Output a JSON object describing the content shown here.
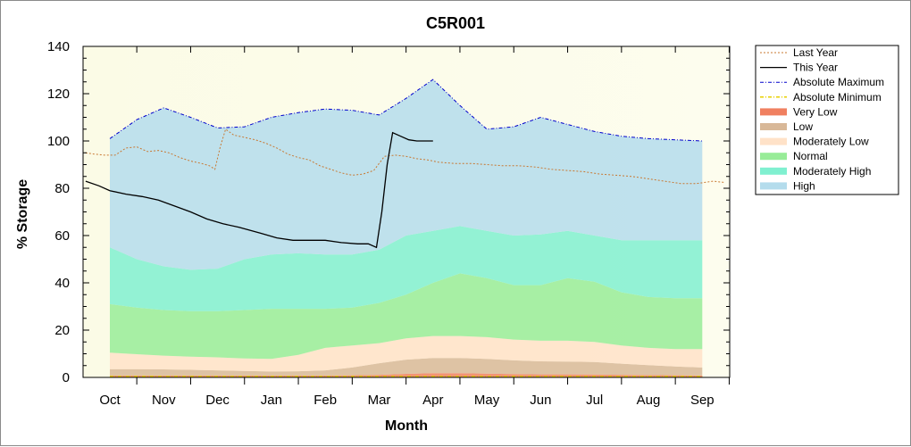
{
  "chart_data": {
    "type": "area",
    "title": "C5R001",
    "xlabel": "Month",
    "ylabel": "% Storage",
    "ylim": [
      0,
      140
    ],
    "yticks": [
      0,
      20,
      40,
      60,
      80,
      100,
      120,
      140
    ],
    "categories": [
      "Oct",
      "Nov",
      "Dec",
      "Jan",
      "Feb",
      "Mar",
      "Apr",
      "May",
      "Jun",
      "Jul",
      "Aug",
      "Sep"
    ],
    "grid": false,
    "legend_position": "right",
    "bands": [
      {
        "name": "Very Low",
        "color": "#f08060",
        "x": [
          0,
          0.5,
          1,
          1.5,
          2,
          2.5,
          3,
          3.5,
          4,
          4.5,
          5,
          5.5,
          6,
          6.5,
          7,
          7.5,
          8,
          8.5,
          9,
          9.5,
          10,
          10.5,
          11
        ],
        "lower": [
          0,
          0,
          0,
          0,
          0,
          0,
          0,
          0,
          0,
          0,
          0,
          0,
          0,
          0,
          0,
          0,
          0,
          0,
          0,
          0,
          0,
          0,
          0
        ],
        "upper": [
          0.8,
          0.8,
          0.8,
          0.8,
          0.8,
          0.8,
          0.8,
          0.8,
          0.8,
          0.9,
          1.1,
          1.5,
          1.8,
          1.8,
          1.6,
          1.4,
          1.3,
          1.3,
          1.2,
          1.1,
          1.0,
          0.9,
          0.8
        ]
      },
      {
        "name": "Low",
        "color": "#d8b898",
        "x": [
          0,
          0.5,
          1,
          1.5,
          2,
          2.5,
          3,
          3.5,
          4,
          4.5,
          5,
          5.5,
          6,
          6.5,
          7,
          7.5,
          8,
          8.5,
          9,
          9.5,
          10,
          10.5,
          11
        ],
        "lower": [
          0.8,
          0.8,
          0.8,
          0.8,
          0.8,
          0.8,
          0.8,
          0.8,
          0.8,
          0.9,
          1.1,
          1.5,
          1.8,
          1.8,
          1.6,
          1.4,
          1.3,
          1.3,
          1.2,
          1.1,
          1.0,
          0.9,
          0.8
        ],
        "upper": [
          3.5,
          3.5,
          3.4,
          3.2,
          3.0,
          2.7,
          2.5,
          2.6,
          3.0,
          4.2,
          6.0,
          7.5,
          8.2,
          8.2,
          7.8,
          7.2,
          6.8,
          6.7,
          6.5,
          5.8,
          5.2,
          4.6,
          4.2
        ]
      },
      {
        "name": "Moderately Low",
        "color": "#ffe2c8",
        "x": [
          0,
          0.5,
          1,
          1.5,
          2,
          2.5,
          3,
          3.5,
          4,
          4.5,
          5,
          5.5,
          6,
          6.5,
          7,
          7.5,
          8,
          8.5,
          9,
          9.5,
          10,
          10.5,
          11
        ],
        "lower": [
          3.5,
          3.5,
          3.4,
          3.2,
          3.0,
          2.7,
          2.5,
          2.6,
          3.0,
          4.2,
          6.0,
          7.5,
          8.2,
          8.2,
          7.8,
          7.2,
          6.8,
          6.7,
          6.5,
          5.8,
          5.2,
          4.6,
          4.2
        ],
        "upper": [
          10.5,
          9.8,
          9.2,
          8.8,
          8.5,
          8.0,
          7.8,
          9.5,
          12.5,
          13.5,
          14.5,
          16.5,
          17.5,
          17.5,
          17.0,
          16.0,
          15.5,
          15.5,
          15.0,
          13.5,
          12.5,
          12.0,
          12.0
        ]
      },
      {
        "name": "Normal",
        "color": "#98ec98",
        "x": [
          0,
          0.5,
          1,
          1.5,
          2,
          2.5,
          3,
          3.5,
          4,
          4.5,
          5,
          5.5,
          6,
          6.5,
          7,
          7.5,
          8,
          8.5,
          9,
          9.5,
          10,
          10.5,
          11
        ],
        "lower": [
          10.5,
          9.8,
          9.2,
          8.8,
          8.5,
          8.0,
          7.8,
          9.5,
          12.5,
          13.5,
          14.5,
          16.5,
          17.5,
          17.5,
          17.0,
          16.0,
          15.5,
          15.5,
          15.0,
          13.5,
          12.5,
          12.0,
          12.0
        ],
        "upper": [
          31,
          29.5,
          28.5,
          28,
          28,
          28.5,
          29,
          29,
          29,
          29.5,
          31.5,
          35,
          40,
          44,
          42,
          39,
          39,
          42,
          40.5,
          36,
          34,
          33.5,
          33.5
        ]
      },
      {
        "name": "Moderately High",
        "color": "#80f0d0",
        "x": [
          0,
          0.5,
          1,
          1.5,
          2,
          2.5,
          3,
          3.5,
          4,
          4.5,
          5,
          5.5,
          6,
          6.5,
          7,
          7.5,
          8,
          8.5,
          9,
          9.5,
          10,
          10.5,
          11
        ],
        "lower": [
          31,
          29.5,
          28.5,
          28,
          28,
          28.5,
          29,
          29,
          29,
          29.5,
          31.5,
          35,
          40,
          44,
          42,
          39,
          39,
          42,
          40.5,
          36,
          34,
          33.5,
          33.5
        ],
        "upper": [
          55,
          50,
          47,
          45.5,
          46,
          50,
          52,
          52.5,
          52,
          52,
          54,
          60,
          62,
          64,
          62,
          60,
          60.5,
          62,
          60,
          58,
          58,
          58,
          58
        ]
      },
      {
        "name": "High",
        "color": "#b4dcec",
        "x": [
          0,
          0.5,
          1,
          1.5,
          2,
          2.5,
          3,
          3.5,
          4,
          4.5,
          5,
          5.5,
          6,
          6.5,
          7,
          7.5,
          8,
          8.5,
          9,
          9.5,
          10,
          10.5,
          11
        ],
        "lower": [
          55,
          50,
          47,
          45.5,
          46,
          50,
          52,
          52.5,
          52,
          52,
          54,
          60,
          62,
          64,
          62,
          60,
          60.5,
          62,
          60,
          58,
          58,
          58,
          58
        ],
        "upper": [
          101,
          109,
          114,
          110,
          105.5,
          106,
          110,
          112,
          113.5,
          113,
          111,
          118,
          126,
          115,
          105,
          106,
          110,
          107,
          104,
          102,
          101,
          100.5,
          100
        ]
      }
    ],
    "series": [
      {
        "name": "Last Year",
        "color": "#c87832",
        "style": "dotted",
        "x": [
          -0.45,
          -0.3,
          -0.1,
          0.1,
          0.3,
          0.5,
          0.7,
          0.9,
          1.1,
          1.3,
          1.5,
          1.7,
          1.85,
          1.95,
          2.05,
          2.15,
          2.3,
          2.5,
          2.7,
          2.9,
          3.1,
          3.3,
          3.5,
          3.7,
          3.9,
          4.1,
          4.3,
          4.5,
          4.7,
          4.9,
          5.1,
          5.3,
          5.5,
          5.7,
          5.9,
          6.1,
          6.4,
          6.7,
          7.0,
          7.3,
          7.6,
          7.9,
          8.2,
          8.5,
          8.8,
          9.1,
          9.4,
          9.7,
          10.0,
          10.3,
          10.6,
          10.9,
          11.2,
          11.4
        ],
        "y": [
          95,
          94.5,
          94,
          94,
          97,
          97.5,
          95.5,
          96,
          95,
          93,
          91.5,
          90.5,
          89.5,
          88,
          97.5,
          105,
          102.5,
          101.5,
          100.5,
          99,
          97,
          94.5,
          93,
          92,
          89.5,
          88,
          86.5,
          85.5,
          86,
          87.5,
          93.5,
          94,
          93.5,
          92.5,
          92,
          91,
          90.5,
          90.5,
          90,
          89.5,
          89.5,
          89,
          88,
          87.5,
          87,
          86,
          85.5,
          85,
          84,
          83,
          82,
          82,
          83,
          82.5
        ]
      },
      {
        "name": "This Year",
        "color": "#000000",
        "style": "solid",
        "x": [
          -0.45,
          -0.2,
          0,
          0.3,
          0.6,
          0.9,
          1.2,
          1.5,
          1.8,
          2.1,
          2.4,
          2.8,
          3.1,
          3.4,
          3.7,
          4.0,
          4.3,
          4.6,
          4.8,
          4.95,
          5.05,
          5.15,
          5.25,
          5.4,
          5.55,
          5.7,
          5.85,
          6.0
        ],
        "y": [
          83,
          81,
          79,
          77.5,
          76.5,
          75,
          72.5,
          70,
          67,
          65,
          63.5,
          61,
          59,
          58,
          58,
          58,
          57,
          56.5,
          56.5,
          55,
          70,
          90,
          103.5,
          102,
          100.5,
          100,
          100,
          100
        ]
      },
      {
        "name": "Absolute Maximum",
        "color": "#0000cc",
        "style": "dash-dot",
        "role": "top edge of High band"
      },
      {
        "name": "Absolute Minimum",
        "color": "#e8d000",
        "style": "dash-dot",
        "role": "near zero"
      }
    ]
  },
  "legend": [
    {
      "label": "Last Year",
      "kind": "line",
      "color": "#c87832",
      "dash": "2,2",
      "width": 1
    },
    {
      "label": "This Year",
      "kind": "line",
      "color": "#000000",
      "dash": "",
      "width": 1.2
    },
    {
      "label": "Absolute Maximum",
      "kind": "line",
      "color": "#0000cc",
      "dash": "4,2,1,2",
      "width": 1
    },
    {
      "label": "Absolute Minimum",
      "kind": "line",
      "color": "#e8d000",
      "dash": "4,2,1,2",
      "width": 1.5
    },
    {
      "label": "Very Low",
      "kind": "swatch",
      "color": "#f08060"
    },
    {
      "label": "Low",
      "kind": "swatch",
      "color": "#d8b898"
    },
    {
      "label": "Moderately Low",
      "kind": "swatch",
      "color": "#ffe2c8"
    },
    {
      "label": "Normal",
      "kind": "swatch",
      "color": "#98ec98"
    },
    {
      "label": "Moderately High",
      "kind": "swatch",
      "color": "#80f0d0"
    },
    {
      "label": "High",
      "kind": "swatch",
      "color": "#b4dcec"
    }
  ]
}
